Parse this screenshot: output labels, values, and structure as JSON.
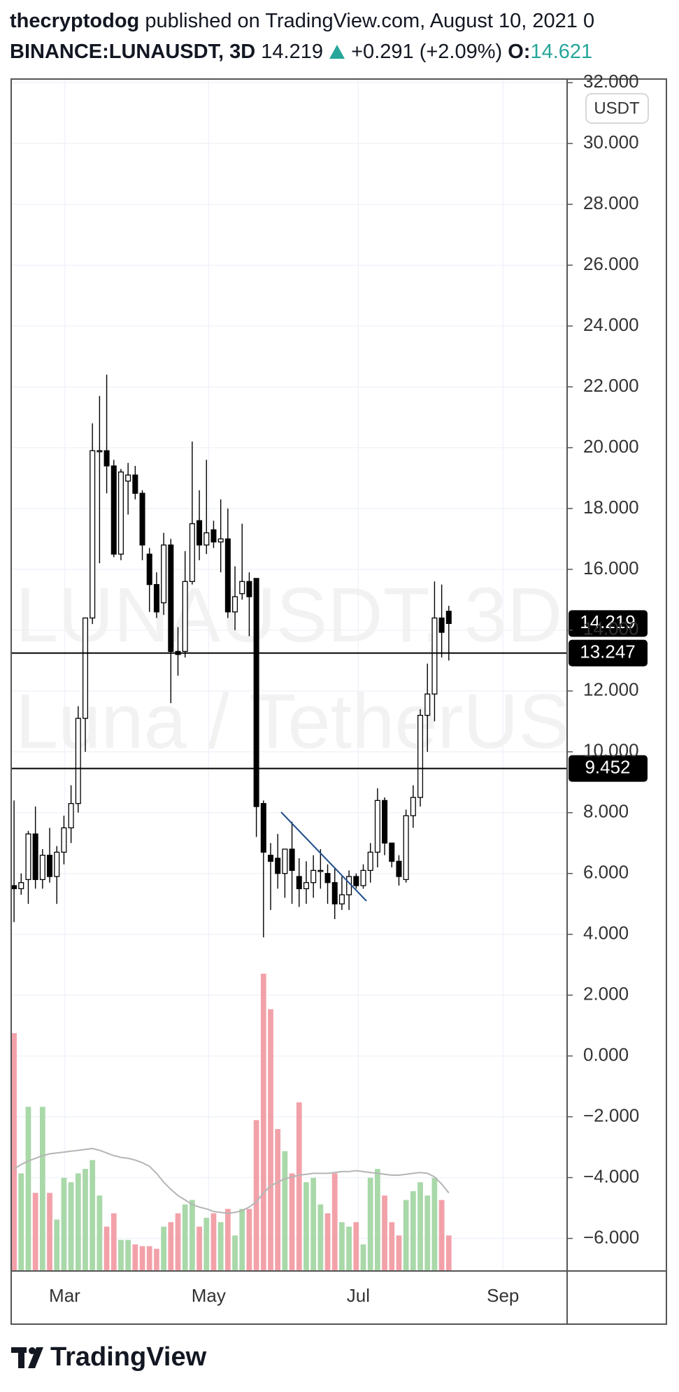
{
  "header": {
    "author": "thecryptodog",
    "published": "published on TradingView.com, August 10, 2021 0",
    "symbol": "BINANCE:LUNAUSDT, 3D",
    "price": "14.219",
    "change": "+0.291 (+2.09%)",
    "open_label": "O:",
    "open": "14.621"
  },
  "chart_data": {
    "type": "candlestick",
    "watermark": [
      "LUNAUSDT, 3D",
      "Luna / TetherUS"
    ],
    "currency": "USDT",
    "open": [
      5.6,
      5.5,
      5.8,
      7.3,
      5.8,
      6.6,
      5.9,
      6.7,
      7.5,
      8.3,
      11.1,
      14.4,
      19.9,
      19.9,
      19.4,
      16.5,
      18.9,
      19.1,
      18.5,
      16.5,
      15.5,
      14.9,
      16.8,
      13.3,
      13.3,
      15.6,
      17.6,
      16.8,
      17.3,
      16.9,
      17.0,
      14.6,
      15.2,
      15.6,
      15.7,
      8.3,
      6.6,
      6.5,
      6.0,
      6.8,
      5.9,
      5.5,
      5.7,
      6.1,
      6.0,
      5.7,
      5.0,
      5.3,
      5.9,
      5.6,
      6.1,
      6.7,
      8.4,
      7.0,
      6.4,
      5.8,
      7.9,
      8.5,
      11.2,
      11.9,
      14.4,
      14.621
    ],
    "high": [
      8.4,
      6.0,
      7.4,
      8.2,
      6.8,
      7.5,
      6.9,
      7.9,
      8.9,
      11.5,
      14.4,
      20.8,
      21.7,
      22.4,
      19.6,
      19.3,
      19.5,
      19.4,
      18.6,
      16.7,
      15.9,
      17.2,
      17.0,
      14.1,
      16.6,
      20.2,
      18.6,
      19.6,
      17.6,
      18.3,
      18.0,
      16.1,
      17.5,
      15.9,
      15.7,
      8.4,
      7.0,
      7.3,
      6.8,
      7.7,
      6.5,
      6.4,
      6.6,
      6.8,
      6.3,
      6.2,
      5.9,
      6.1,
      6.0,
      6.3,
      7.0,
      8.8,
      8.5,
      7.0,
      6.6,
      8.1,
      8.9,
      11.4,
      12.9,
      15.6,
      15.5,
      14.8
    ],
    "low": [
      4.4,
      5.3,
      5.0,
      5.5,
      5.5,
      5.7,
      5.0,
      6.3,
      7.0,
      8.0,
      10.0,
      14.2,
      16.2,
      18.5,
      16.4,
      16.3,
      17.8,
      18.3,
      16.3,
      14.6,
      14.4,
      14.5,
      11.6,
      12.5,
      13.1,
      15.5,
      16.3,
      16.5,
      16.7,
      15.9,
      14.4,
      14.0,
      15.0,
      13.8,
      7.2,
      3.9,
      4.8,
      5.5,
      5.2,
      5.0,
      4.9,
      5.0,
      5.2,
      5.5,
      5.0,
      4.5,
      4.8,
      4.8,
      5.5,
      5.5,
      5.7,
      6.2,
      6.6,
      6.2,
      5.6,
      5.7,
      7.5,
      8.2,
      10.0,
      11.0,
      13.1,
      13.0
    ],
    "close": [
      5.5,
      5.7,
      7.3,
      5.8,
      6.6,
      5.9,
      6.7,
      7.5,
      8.3,
      11.1,
      14.4,
      19.9,
      19.9,
      19.4,
      16.5,
      19.2,
      19.1,
      18.5,
      16.8,
      15.5,
      14.6,
      16.8,
      13.3,
      13.2,
      15.6,
      17.5,
      16.8,
      17.2,
      16.9,
      17.0,
      14.6,
      15.1,
      15.6,
      15.1,
      8.2,
      6.7,
      6.4,
      6.0,
      6.8,
      6.1,
      5.5,
      5.7,
      6.1,
      6.1,
      5.7,
      5.0,
      5.3,
      5.9,
      5.6,
      6.1,
      6.7,
      8.4,
      7.0,
      6.4,
      5.9,
      7.9,
      8.5,
      11.2,
      11.9,
      14.4,
      13.928,
      14.219
    ],
    "volume": [
      268,
      110,
      185,
      88,
      185,
      88,
      58,
      105,
      100,
      110,
      115,
      125,
      85,
      50,
      65,
      35,
      35,
      30,
      28,
      28,
      25,
      50,
      55,
      65,
      75,
      80,
      50,
      60,
      65,
      55,
      70,
      40,
      70,
      70,
      170,
      335,
      295,
      160,
      135,
      110,
      190,
      100,
      105,
      75,
      65,
      110,
      55,
      50,
      55,
      30,
      105,
      115,
      85,
      55,
      40,
      80,
      90,
      100,
      85,
      105,
      80,
      40
    ],
    "volume_ma": [
      115,
      120,
      124,
      127,
      130,
      132,
      133,
      134,
      135,
      136,
      137,
      138,
      136,
      133,
      130,
      128,
      127,
      125,
      122,
      118,
      110,
      100,
      92,
      85,
      80,
      75,
      72,
      70,
      67,
      66,
      65,
      66,
      68,
      72,
      78,
      88,
      96,
      100,
      104,
      106,
      108,
      109,
      110,
      110,
      110,
      111,
      112,
      112,
      113,
      112,
      111,
      110,
      109,
      108,
      108,
      109,
      110,
      111,
      110,
      106,
      98,
      88
    ],
    "up_color": "#ffffff",
    "down_color": "#000000",
    "volume_up_color": "#a9d8a9",
    "volume_down_color": "#f2a1a9",
    "volume_ma_color": "#b5b5b5",
    "xlim": [
      -0.4,
      77.6
    ],
    "xticks": [
      {
        "value": 7.1,
        "label": "Mar"
      },
      {
        "value": 27.3,
        "label": "May"
      },
      {
        "value": 48.3,
        "label": "Jul"
      },
      {
        "value": 68.6,
        "label": "Sep"
      }
    ],
    "ylim": [
      -7.07,
      32.12
    ],
    "yticks": [
      {
        "value": 32,
        "label": "32.000"
      },
      {
        "value": 30,
        "label": "30.000"
      },
      {
        "value": 28,
        "label": "28.000"
      },
      {
        "value": 26,
        "label": "26.000"
      },
      {
        "value": 24,
        "label": "24.000"
      },
      {
        "value": 22,
        "label": "22.000"
      },
      {
        "value": 20,
        "label": "20.000"
      },
      {
        "value": 18,
        "label": "18.000"
      },
      {
        "value": 16,
        "label": "16.000"
      },
      {
        "value": 14,
        "label": "14.000"
      },
      {
        "value": 12,
        "label": "12.000"
      },
      {
        "value": 10,
        "label": "10.000"
      },
      {
        "value": 8,
        "label": "8.000"
      },
      {
        "value": 6,
        "label": "6.000"
      },
      {
        "value": 4,
        "label": "4.000"
      },
      {
        "value": 2,
        "label": "2.000"
      },
      {
        "value": 0,
        "label": "0.000"
      },
      {
        "value": -2,
        "label": "−2.000"
      },
      {
        "value": -4,
        "label": "−4.000"
      },
      {
        "value": -6,
        "label": "−6.000"
      }
    ],
    "grid": true,
    "price_lines": [
      {
        "value": 13.247,
        "label": "13.247"
      },
      {
        "value": 9.452,
        "label": "9.452"
      }
    ],
    "last_price": {
      "value": 14.219,
      "label": "14.219"
    }
  },
  "footer": {
    "brand": "TradingView"
  }
}
